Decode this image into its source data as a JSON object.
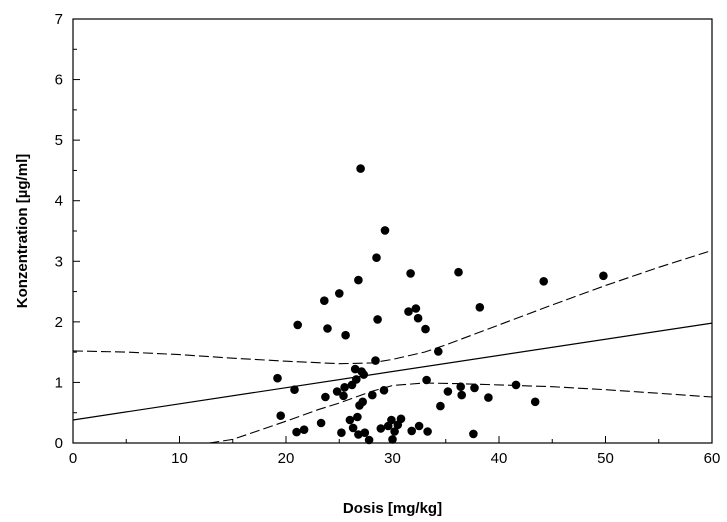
{
  "chart_data": {
    "type": "scatter",
    "xlabel": "Dosis  [mg/kg]",
    "ylabel": "Konzentration  [µg/ml]",
    "xlim": [
      0,
      60
    ],
    "ylim": [
      0,
      7
    ],
    "xticks": [
      0,
      10,
      20,
      30,
      40,
      50,
      60
    ],
    "yticks": [
      0,
      1,
      2,
      3,
      4,
      5,
      6,
      7
    ],
    "grid": false,
    "points": [
      [
        19.2,
        1.07
      ],
      [
        19.5,
        0.45
      ],
      [
        20.8,
        0.88
      ],
      [
        21.1,
        1.95
      ],
      [
        21.0,
        0.18
      ],
      [
        21.7,
        0.22
      ],
      [
        23.3,
        0.33
      ],
      [
        23.6,
        2.35
      ],
      [
        23.7,
        0.76
      ],
      [
        23.9,
        1.89
      ],
      [
        24.8,
        0.85
      ],
      [
        25.0,
        2.47
      ],
      [
        25.2,
        0.17
      ],
      [
        25.5,
        0.92
      ],
      [
        25.4,
        0.78
      ],
      [
        25.6,
        1.78
      ],
      [
        26.0,
        0.38
      ],
      [
        26.2,
        0.96
      ],
      [
        26.3,
        0.25
      ],
      [
        26.5,
        1.22
      ],
      [
        26.6,
        1.05
      ],
      [
        26.8,
        2.69
      ],
      [
        26.7,
        0.43
      ],
      [
        26.9,
        0.62
      ],
      [
        26.8,
        0.14
      ],
      [
        27.0,
        4.53
      ],
      [
        27.1,
        1.18
      ],
      [
        27.2,
        0.68
      ],
      [
        27.3,
        1.13
      ],
      [
        27.4,
        0.17
      ],
      [
        27.8,
        0.05
      ],
      [
        28.1,
        0.79
      ],
      [
        28.4,
        1.36
      ],
      [
        28.5,
        3.06
      ],
      [
        28.6,
        2.04
      ],
      [
        28.9,
        0.24
      ],
      [
        29.2,
        0.87
      ],
      [
        29.3,
        3.51
      ],
      [
        29.6,
        0.28
      ],
      [
        29.9,
        0.38
      ],
      [
        30.0,
        0.06
      ],
      [
        30.2,
        0.19
      ],
      [
        30.5,
        0.3
      ],
      [
        30.8,
        0.4
      ],
      [
        31.5,
        2.17
      ],
      [
        31.7,
        2.8
      ],
      [
        31.8,
        0.2
      ],
      [
        32.2,
        2.22
      ],
      [
        32.4,
        2.06
      ],
      [
        32.5,
        0.28
      ],
      [
        33.1,
        1.88
      ],
      [
        33.2,
        1.04
      ],
      [
        33.3,
        0.19
      ],
      [
        34.3,
        1.51
      ],
      [
        34.5,
        0.61
      ],
      [
        35.2,
        0.85
      ],
      [
        36.2,
        2.82
      ],
      [
        36.4,
        0.93
      ],
      [
        36.5,
        0.79
      ],
      [
        37.6,
        0.15
      ],
      [
        37.7,
        0.91
      ],
      [
        38.2,
        2.24
      ],
      [
        39.0,
        0.75
      ],
      [
        41.6,
        0.96
      ],
      [
        43.4,
        0.68
      ],
      [
        44.2,
        2.67
      ],
      [
        49.8,
        2.76
      ]
    ],
    "regression_line": {
      "x": [
        0,
        60
      ],
      "y": [
        0.38,
        1.98
      ]
    },
    "confidence_band_upper": {
      "x": [
        0,
        5,
        10,
        15,
        20,
        25,
        28,
        30,
        33,
        35,
        40,
        45,
        50,
        55,
        60
      ],
      "y": [
        1.52,
        1.5,
        1.46,
        1.4,
        1.35,
        1.31,
        1.32,
        1.38,
        1.5,
        1.62,
        1.95,
        2.28,
        2.6,
        2.9,
        3.18
      ]
    },
    "confidence_band_lower": {
      "x": [
        12.8,
        15,
        18,
        20,
        23,
        25,
        28,
        30,
        33,
        36,
        40,
        45,
        50,
        55,
        60
      ],
      "y": [
        0.0,
        0.06,
        0.24,
        0.36,
        0.55,
        0.66,
        0.85,
        0.95,
        0.99,
        0.98,
        0.96,
        0.93,
        0.88,
        0.82,
        0.76
      ]
    }
  }
}
